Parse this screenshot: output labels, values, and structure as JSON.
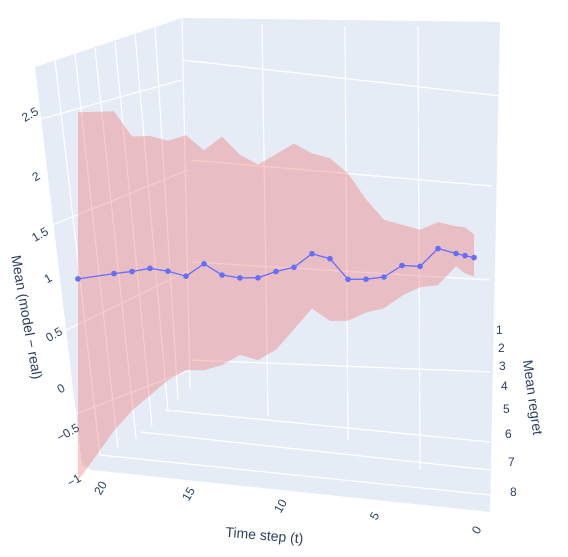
{
  "chart_data": {
    "type": "line",
    "projection": "3d",
    "x_axis": {
      "label": "Time step (t)",
      "ticks": [
        0,
        5,
        10,
        15,
        20
      ],
      "range": [
        0,
        22
      ]
    },
    "y_axis": {
      "label": "Mean regret",
      "ticks": [
        1,
        2,
        3,
        4,
        5,
        6,
        7,
        8
      ],
      "range": [
        1,
        8
      ]
    },
    "z_axis": {
      "label": "Mean (model − real)",
      "ticks": [
        "2.5",
        "2",
        "1.5",
        "1",
        "0.5",
        "0",
        "−0.5",
        "−1"
      ],
      "range": [
        -1,
        2.8
      ]
    },
    "series": [
      {
        "style": "markers+lines",
        "color": "#636efa",
        "x": [
          22,
          20,
          19,
          18,
          17,
          16,
          15,
          14,
          13,
          12,
          11,
          10,
          9,
          8,
          7,
          6,
          5,
          4,
          3,
          2,
          1,
          0.5,
          0
        ],
        "z": [
          1.1,
          1.15,
          1.17,
          1.2,
          1.17,
          1.12,
          1.24,
          1.13,
          1.1,
          1.1,
          1.16,
          1.2,
          1.33,
          1.28,
          1.08,
          1.08,
          1.1,
          1.21,
          1.2,
          1.37,
          1.32,
          1.3,
          1.28
        ]
      },
      {
        "style": "band",
        "color": "#ef5350",
        "opacity": 0.3,
        "x": [
          22,
          20,
          19,
          18,
          17,
          16,
          15,
          14,
          13,
          12,
          11,
          10,
          9,
          8,
          7,
          6,
          5,
          4,
          3,
          2,
          1,
          0.5,
          0
        ],
        "upper": [
          2.75,
          2.75,
          2.5,
          2.5,
          2.45,
          2.5,
          2.35,
          2.48,
          2.3,
          2.2,
          2.3,
          2.4,
          2.3,
          2.25,
          2.1,
          1.85,
          1.65,
          1.6,
          1.55,
          1.62,
          1.58,
          1.57,
          1.5
        ],
        "lower": [
          -0.9,
          -0.4,
          -0.2,
          -0.05,
          0.1,
          0.2,
          0.2,
          0.25,
          0.35,
          0.3,
          0.4,
          0.6,
          0.8,
          0.68,
          0.68,
          0.76,
          0.8,
          0.92,
          1.0,
          1.02,
          1.2,
          1.13,
          1.1
        ]
      }
    ]
  }
}
